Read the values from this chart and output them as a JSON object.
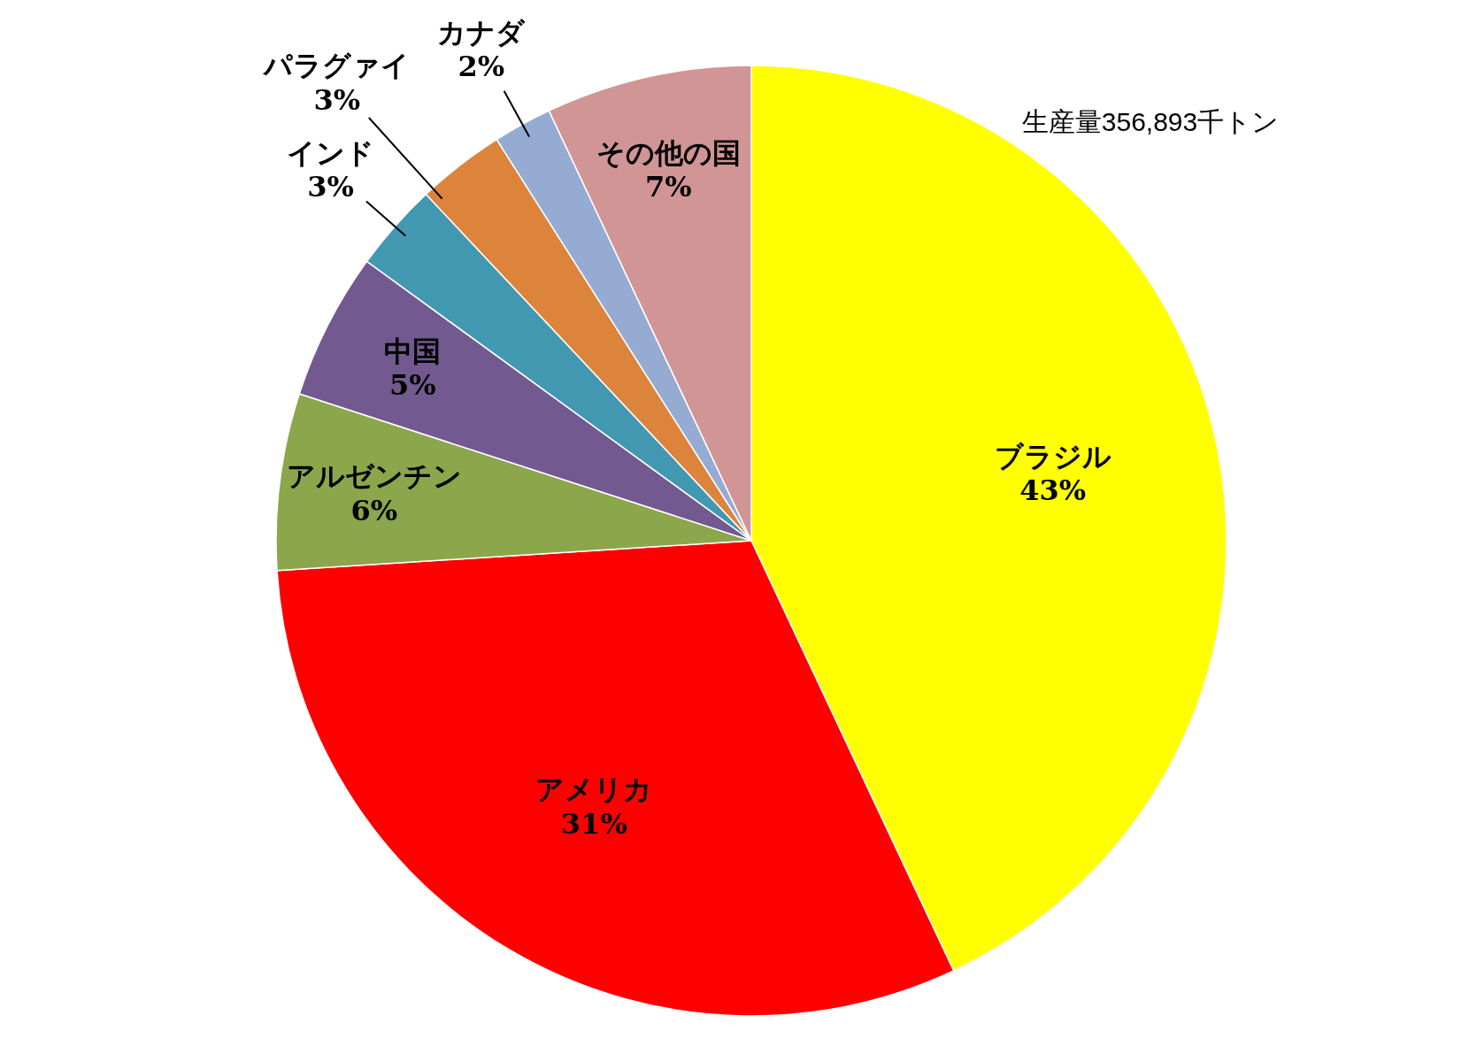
{
  "chart_data": {
    "type": "pie",
    "categories": [
      "ブラジル",
      "アメリカ",
      "アルゼンチン",
      "中国",
      "インド",
      "パラグァイ",
      "カナダ",
      "その他の国"
    ],
    "values": [
      43,
      31,
      6,
      5,
      3,
      3,
      2,
      7
    ],
    "value_labels": [
      "43%",
      "31%",
      "6%",
      "5%",
      "3%",
      "3%",
      "2%",
      "7%"
    ],
    "colors": [
      "#ffff00",
      "#ff0000",
      "#8ba64b",
      "#72598f",
      "#4298b0",
      "#dc843c",
      "#96abd2",
      "#d19595"
    ],
    "annotations": [
      "生産量356,893千トン"
    ]
  }
}
